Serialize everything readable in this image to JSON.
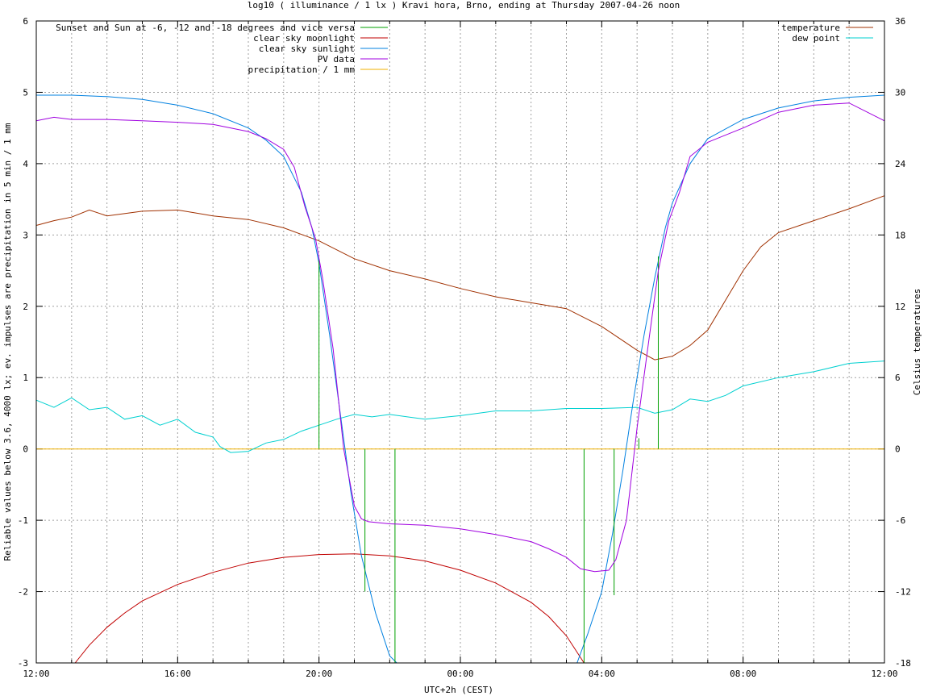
{
  "chart_data": {
    "type": "line",
    "title": "log10 ( illuminance / 1 lx ) Kravi hora, Brno, ending at Thursday 2007-04-26 noon",
    "xlabel": "UTC+2h (CEST)",
    "ylabel": "Reliable values below 3.6, 4000 lx; ev. impulses are precipitation in 5 min / 1 mm",
    "y2label": "Celsius temperatures",
    "x_ticks": [
      "12:00",
      "16:00",
      "20:00",
      "00:00",
      "04:00",
      "08:00",
      "12:00"
    ],
    "x_range_hours": [
      0,
      24
    ],
    "ylim": [
      -3,
      6
    ],
    "y_ticks": [
      -3,
      -2,
      -1,
      0,
      1,
      2,
      3,
      4,
      5,
      6
    ],
    "y2lim": [
      -18,
      36
    ],
    "y2_ticks": [
      -18,
      -12,
      -6,
      0,
      6,
      12,
      18,
      24,
      30,
      36
    ],
    "grid": true,
    "legend_left_position": "top-left",
    "legend_right_position": "top-right",
    "legend_left": [
      {
        "name": "Sunset and Sun at -6, -12 and -18 degrees and vice versa",
        "color": "#00a000"
      },
      {
        "name": "clear sky moonlight",
        "color": "#c00000"
      },
      {
        "name": "clear sky sunlight",
        "color": "#0080e0"
      },
      {
        "name": "PV data",
        "color": "#a000e0"
      },
      {
        "name": "precipitation / 1 mm",
        "color": "#f0b000"
      }
    ],
    "legend_right": [
      {
        "name": "temperature",
        "color": "#a03000"
      },
      {
        "name": "dew point",
        "color": "#00d0d0"
      }
    ],
    "twilight_markers": [
      {
        "x": 8.0,
        "from": 2.65,
        "to": 0
      },
      {
        "x": 8.6,
        "from": 0,
        "to": 0
      },
      {
        "x": 9.3,
        "from": 0,
        "to": -2.0
      },
      {
        "x": 10.15,
        "from": 0,
        "to": -3
      },
      {
        "x": 15.5,
        "from": 0,
        "to": -3
      },
      {
        "x": 16.35,
        "from": 0,
        "to": -2.05
      },
      {
        "x": 17.05,
        "from": 0.15,
        "to": 0
      },
      {
        "x": 17.6,
        "from": 2.7,
        "to": 0
      }
    ],
    "moonlight": {
      "x": [
        1.1,
        1.5,
        2,
        2.5,
        3,
        4,
        5,
        6,
        7,
        8,
        9,
        10,
        11,
        12,
        13,
        14,
        14.5,
        15,
        15.5
      ],
      "y": [
        -3,
        -2.75,
        -2.5,
        -2.3,
        -2.13,
        -1.9,
        -1.73,
        -1.6,
        -1.52,
        -1.48,
        -1.47,
        -1.5,
        -1.57,
        -1.7,
        -1.88,
        -2.15,
        -2.35,
        -2.62,
        -3
      ]
    },
    "sunlight": {
      "x": [
        0,
        1,
        2,
        3,
        4,
        5,
        6,
        6.5,
        7,
        7.5,
        7.8,
        8,
        8.3,
        8.6,
        8.9,
        9.2,
        9.6,
        10,
        10.2,
        15.3,
        15.6,
        16,
        16.3,
        16.6,
        16.9,
        17.2,
        17.5,
        17.8,
        18,
        18.5,
        19,
        20,
        21,
        22,
        23,
        24
      ],
      "y": [
        4.96,
        4.96,
        4.94,
        4.9,
        4.82,
        4.7,
        4.5,
        4.33,
        4.1,
        3.6,
        3.1,
        2.6,
        1.6,
        0.5,
        -0.6,
        -1.5,
        -2.3,
        -2.9,
        -3,
        -3,
        -2.6,
        -2.0,
        -1.2,
        -0.3,
        0.7,
        1.6,
        2.4,
        3.1,
        3.45,
        4.0,
        4.35,
        4.62,
        4.78,
        4.88,
        4.93,
        4.96
      ]
    },
    "pv_data": {
      "x": [
        0,
        0.5,
        1,
        2,
        3,
        4,
        5,
        6,
        6.5,
        7,
        7.3,
        7.6,
        7.9,
        8.1,
        8.4,
        8.7,
        9.0,
        9.2,
        9.4,
        10,
        11,
        12,
        13,
        14,
        14.5,
        15,
        15.4,
        15.8,
        16.2,
        16.4,
        16.7,
        17.0,
        17.3,
        17.6,
        17.9,
        18.2,
        18.5,
        19,
        20,
        21,
        22,
        23,
        24
      ],
      "y": [
        4.6,
        4.65,
        4.62,
        4.62,
        4.6,
        4.58,
        4.55,
        4.45,
        4.35,
        4.2,
        3.95,
        3.4,
        2.95,
        2.4,
        1.4,
        0.0,
        -0.8,
        -0.98,
        -1.02,
        -1.05,
        -1.07,
        -1.12,
        -1.2,
        -1.3,
        -1.4,
        -1.52,
        -1.68,
        -1.72,
        -1.7,
        -1.55,
        -1.0,
        0.3,
        1.4,
        2.5,
        3.2,
        3.6,
        4.1,
        4.3,
        4.5,
        4.72,
        4.82,
        4.85,
        4.6
      ]
    },
    "precipitation": {
      "x": [
        0,
        24
      ],
      "y": [
        0,
        0
      ]
    },
    "temperature": {
      "x": [
        0,
        0.5,
        1,
        1.5,
        2,
        3,
        4,
        5,
        6,
        7,
        8,
        9,
        10,
        11,
        12,
        13,
        14,
        15,
        16,
        16.5,
        17,
        17.5,
        18,
        18.5,
        19,
        19.5,
        20,
        20.5,
        21,
        22,
        23,
        24
      ],
      "y": [
        18.8,
        19.2,
        19.5,
        20.1,
        19.6,
        20.0,
        20.1,
        19.6,
        19.3,
        18.6,
        17.5,
        16.0,
        15.0,
        14.3,
        13.5,
        12.8,
        12.3,
        11.8,
        10.3,
        9.3,
        8.3,
        7.5,
        7.8,
        8.7,
        10.0,
        12.5,
        15.0,
        17.0,
        18.2,
        19.2,
        20.2,
        21.3
      ]
    },
    "dew_point": {
      "x": [
        0,
        0.5,
        1,
        1.5,
        2,
        2.5,
        3,
        3.5,
        4,
        4.5,
        5,
        5.2,
        5.5,
        6,
        6.5,
        7,
        7.5,
        8,
        8.5,
        9,
        9.5,
        10,
        11,
        12,
        13,
        14,
        15,
        16,
        17,
        17.5,
        18,
        18.5,
        19,
        19.5,
        20,
        21,
        22,
        23,
        24
      ],
      "y": [
        4.1,
        3.5,
        4.3,
        3.3,
        3.5,
        2.5,
        2.8,
        2.0,
        2.5,
        1.4,
        1.0,
        0.2,
        -0.3,
        -0.2,
        0.5,
        0.8,
        1.5,
        2.0,
        2.5,
        2.9,
        2.7,
        2.9,
        2.5,
        2.8,
        3.2,
        3.2,
        3.4,
        3.4,
        3.5,
        3.0,
        3.3,
        4.2,
        4.0,
        4.5,
        5.3,
        6.0,
        6.5,
        7.2,
        7.4
      ]
    }
  }
}
